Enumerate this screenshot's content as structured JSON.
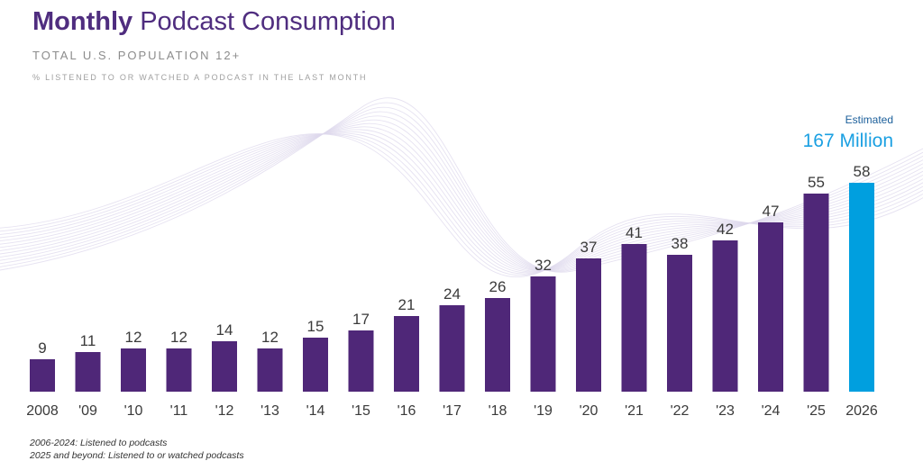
{
  "header": {
    "title_bold": "Monthly",
    "title_rest": "Podcast Consumption",
    "subtitle": "TOTAL U.S. POPULATION 12+",
    "subsubtitle": "% LISTENED TO OR WATCHED A PODCAST IN THE LAST MONTH"
  },
  "estimate": {
    "label": "Estimated",
    "value": "167 Million"
  },
  "notes": {
    "line1": "2006-2024: Listened to podcasts",
    "line2": "2025 and beyond: Listened to or watched podcasts"
  },
  "colors": {
    "bar": "#4f2778",
    "bar_estimated": "#009fdf",
    "title": "#4f2d7f"
  },
  "chart_data": {
    "type": "bar",
    "title": "Monthly Podcast Consumption",
    "categories": [
      "2008",
      "'09",
      "'10",
      "'11",
      "'12",
      "'13",
      "'14",
      "'15",
      "'16",
      "'17",
      "'18",
      "'19",
      "'20",
      "'21",
      "'22",
      "'23",
      "'24",
      "'25",
      "2026"
    ],
    "values": [
      9,
      11,
      12,
      12,
      14,
      12,
      15,
      17,
      21,
      24,
      26,
      32,
      37,
      41,
      38,
      42,
      47,
      55,
      58
    ],
    "estimated_index": 18,
    "ylim": [
      0,
      60
    ],
    "grid": false,
    "legend": "none",
    "xlabel": "",
    "ylabel": ""
  }
}
